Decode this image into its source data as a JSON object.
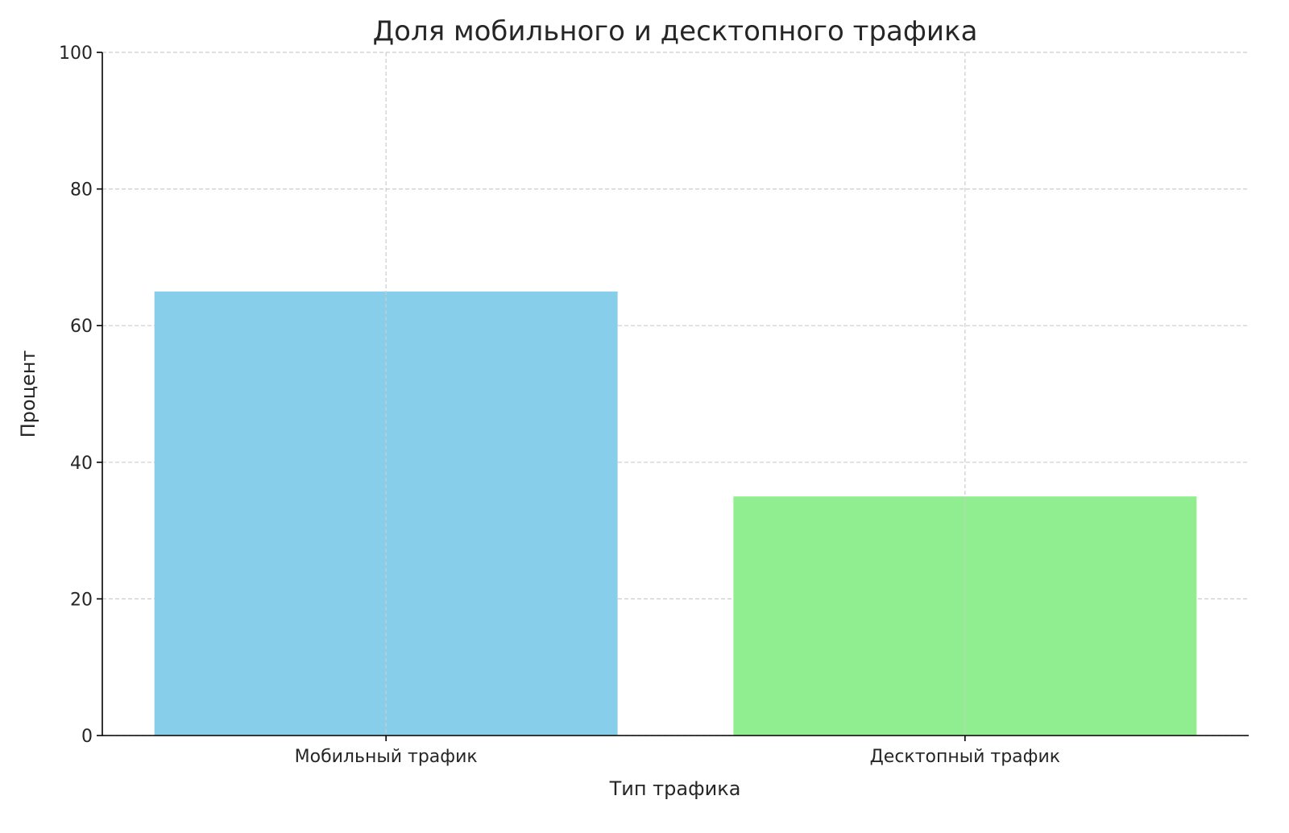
{
  "chart_data": {
    "type": "bar",
    "title": "Доля мобильного и десктопного трафика",
    "xlabel": "Тип трафика",
    "ylabel": "Процент",
    "categories": [
      "Мобильный трафик",
      "Десктопный трафик"
    ],
    "values": [
      65,
      35
    ],
    "colors": [
      "#87CEEB",
      "#90EE90"
    ],
    "ylim": [
      0,
      100
    ],
    "yticks": [
      0,
      20,
      40,
      60,
      80,
      100
    ],
    "grid": true,
    "legend": "none"
  }
}
